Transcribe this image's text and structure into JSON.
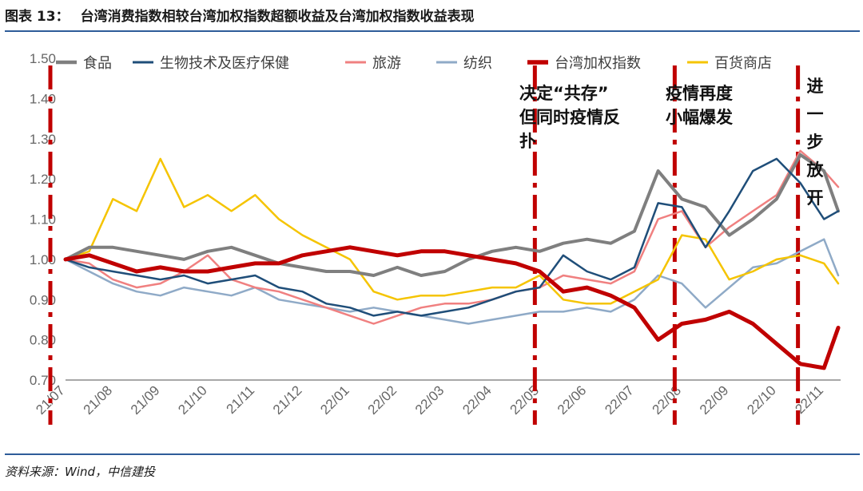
{
  "figure": {
    "label": "图表 13：",
    "title": "台湾消费指数相较台湾加权指数超额收益及台湾加权指数收益表现",
    "source": "资料来源：Wind，中信建投"
  },
  "chart_data": {
    "type": "line",
    "title": "台湾消费指数相较台湾加权指数超额收益及台湾加权指数收益表现",
    "xlabel": "",
    "ylabel": "",
    "ylim": [
      0.7,
      1.5
    ],
    "yticks": [
      "0.70",
      "0.80",
      "0.90",
      "1.00",
      "1.10",
      "1.20",
      "1.30",
      "1.40",
      "1.50"
    ],
    "x_ticks": [
      "21/07",
      "21/08",
      "21/09",
      "21/10",
      "21/11",
      "21/12",
      "22/01",
      "22/02",
      "22/03",
      "22/04",
      "22/05",
      "22/06",
      "22/07",
      "22/08",
      "22/09",
      "22/10",
      "22/11"
    ],
    "grid": false,
    "legend": "top",
    "x": [
      0,
      0.5,
      1,
      1.5,
      2,
      2.5,
      3,
      3.5,
      4,
      4.5,
      5,
      5.5,
      6,
      6.5,
      7,
      7.5,
      8,
      8.5,
      9,
      9.5,
      10,
      10.5,
      11,
      11.5,
      12,
      12.5,
      13,
      13.5,
      14,
      14.5,
      15,
      15.5,
      16,
      16.3
    ],
    "series": [
      {
        "name": "食品",
        "color": "#7f7f7f",
        "width": 4,
        "values": [
          1.0,
          1.03,
          1.03,
          1.02,
          1.01,
          1.0,
          1.02,
          1.03,
          1.01,
          0.99,
          0.98,
          0.97,
          0.97,
          0.96,
          0.98,
          0.96,
          0.97,
          1.0,
          1.02,
          1.03,
          1.02,
          1.04,
          1.05,
          1.04,
          1.07,
          1.22,
          1.15,
          1.13,
          1.06,
          1.1,
          1.15,
          1.26,
          1.22,
          1.12
        ]
      },
      {
        "name": "生物技术及医疗保健",
        "color": "#1f4e79",
        "width": 2.5,
        "values": [
          1.0,
          0.98,
          0.97,
          0.96,
          0.95,
          0.96,
          0.94,
          0.95,
          0.96,
          0.93,
          0.92,
          0.89,
          0.88,
          0.86,
          0.87,
          0.86,
          0.87,
          0.88,
          0.9,
          0.92,
          0.93,
          1.01,
          0.97,
          0.95,
          0.98,
          1.14,
          1.13,
          1.03,
          1.12,
          1.22,
          1.25,
          1.19,
          1.1,
          1.12
        ]
      },
      {
        "name": "旅游",
        "color": "#f08080",
        "width": 2.5,
        "values": [
          1.0,
          0.99,
          0.95,
          0.93,
          0.94,
          0.97,
          1.01,
          0.95,
          0.93,
          0.92,
          0.9,
          0.88,
          0.86,
          0.84,
          0.86,
          0.88,
          0.89,
          0.89,
          0.9,
          0.92,
          0.93,
          0.96,
          0.95,
          0.94,
          0.97,
          1.1,
          1.12,
          1.03,
          1.08,
          1.12,
          1.16,
          1.27,
          1.22,
          1.18
        ]
      },
      {
        "name": "纺织",
        "color": "#8faac7",
        "width": 2.5,
        "values": [
          1.0,
          0.97,
          0.94,
          0.92,
          0.91,
          0.93,
          0.92,
          0.91,
          0.93,
          0.9,
          0.89,
          0.88,
          0.87,
          0.88,
          0.87,
          0.86,
          0.85,
          0.84,
          0.85,
          0.86,
          0.87,
          0.87,
          0.88,
          0.87,
          0.9,
          0.96,
          0.94,
          0.88,
          0.93,
          0.98,
          0.99,
          1.02,
          1.05,
          0.96
        ]
      },
      {
        "name": "台湾加权指数",
        "color": "#c00000",
        "width": 5,
        "values": [
          1.0,
          1.01,
          0.99,
          0.97,
          0.98,
          0.97,
          0.97,
          0.98,
          0.99,
          0.99,
          1.01,
          1.02,
          1.03,
          1.02,
          1.01,
          1.02,
          1.02,
          1.01,
          1.0,
          0.99,
          0.97,
          0.92,
          0.93,
          0.91,
          0.88,
          0.8,
          0.84,
          0.85,
          0.87,
          0.84,
          0.79,
          0.74,
          0.73,
          0.83
        ]
      },
      {
        "name": "百货商店",
        "color": "#f5c400",
        "width": 2.5,
        "values": [
          1.0,
          1.02,
          1.15,
          1.12,
          1.25,
          1.13,
          1.16,
          1.12,
          1.16,
          1.1,
          1.06,
          1.03,
          1.0,
          0.92,
          0.9,
          0.91,
          0.91,
          0.92,
          0.93,
          0.93,
          0.96,
          0.9,
          0.89,
          0.89,
          0.92,
          0.95,
          1.06,
          1.05,
          0.95,
          0.97,
          1.0,
          1.01,
          0.99,
          0.94
        ]
      }
    ],
    "events": [
      {
        "x": 0,
        "lines": []
      },
      {
        "x": 9.9,
        "lines": [
          "决定“共存”",
          "但同时疫情反",
          "扑"
        ]
      },
      {
        "x": 12.85,
        "lines": [
          "疫情再度",
          "小幅爆发"
        ]
      },
      {
        "x": 15.45,
        "lines": [
          "进",
          "一",
          "步",
          "放",
          "开"
        ]
      }
    ]
  }
}
